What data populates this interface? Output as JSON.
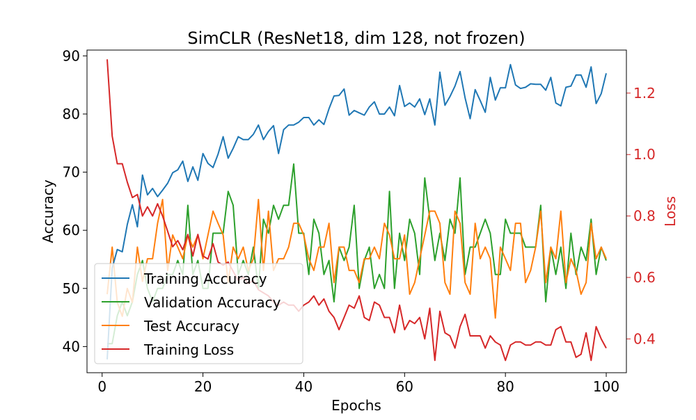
{
  "chart_data": {
    "type": "line",
    "title": "SimCLR (ResNet18, dim 128, not frozen)",
    "xlabel": "Epochs",
    "ylabel": "Accuracy",
    "ylabel_right": "Loss",
    "xlim": [
      -3,
      104
    ],
    "ylim": [
      35.5,
      91
    ],
    "ylim_right": [
      0.29,
      1.34
    ],
    "xticks": [
      0,
      20,
      40,
      60,
      80,
      100
    ],
    "yticks": [
      40,
      50,
      60,
      70,
      80,
      90
    ],
    "yticks_right": [
      0.4,
      0.6,
      0.8,
      1.0,
      1.2
    ],
    "grid": false,
    "legend_position": "lower-left",
    "x": [
      1,
      2,
      3,
      4,
      5,
      6,
      7,
      8,
      9,
      10,
      11,
      12,
      13,
      14,
      15,
      16,
      17,
      18,
      19,
      20,
      21,
      22,
      23,
      24,
      25,
      26,
      27,
      28,
      29,
      30,
      31,
      32,
      33,
      34,
      35,
      36,
      37,
      38,
      39,
      40,
      41,
      42,
      43,
      44,
      45,
      46,
      47,
      48,
      49,
      50,
      51,
      52,
      53,
      54,
      55,
      56,
      57,
      58,
      59,
      60,
      61,
      62,
      63,
      64,
      65,
      66,
      67,
      68,
      69,
      70,
      71,
      72,
      73,
      74,
      75,
      76,
      77,
      78,
      79,
      80,
      81,
      82,
      83,
      84,
      85,
      86,
      87,
      88,
      89,
      90,
      91,
      92,
      93,
      94,
      95,
      96,
      97,
      98,
      99,
      100
    ],
    "series": [
      {
        "name": "Training Accuracy",
        "axis": "left",
        "color": "#1f77b4",
        "values": [
          37.8,
          53.5,
          56.7,
          56.3,
          61.0,
          64.4,
          60.6,
          69.5,
          66.1,
          67.2,
          65.8,
          66.9,
          68.1,
          69.9,
          70.4,
          71.9,
          68.4,
          70.9,
          68.6,
          73.2,
          71.5,
          70.8,
          73.1,
          76.1,
          72.4,
          74.1,
          76.1,
          75.6,
          75.6,
          76.5,
          78.1,
          75.6,
          77.0,
          78.0,
          73.2,
          77.3,
          78.1,
          78.1,
          78.6,
          79.4,
          79.4,
          78.1,
          79.0,
          78.2,
          80.9,
          83.1,
          83.2,
          84.3,
          79.8,
          80.6,
          80.2,
          79.8,
          81.2,
          82.1,
          80.0,
          80.0,
          81.2,
          79.7,
          84.9,
          81.3,
          81.9,
          81.2,
          82.6,
          79.9,
          82.6,
          78.1,
          87.2,
          81.5,
          83.0,
          84.8,
          87.3,
          82.8,
          79.2,
          84.2,
          82.3,
          80.3,
          86.3,
          82.4,
          84.5,
          84.5,
          88.5,
          85.0,
          84.4,
          84.6,
          85.2,
          85.1,
          85.1,
          84.1,
          86.3,
          81.9,
          81.4,
          84.6,
          84.8,
          86.7,
          86.7,
          84.6,
          88.1,
          81.8,
          83.5,
          87.0
        ]
      },
      {
        "name": "Validation Accuracy",
        "axis": "left",
        "color": "#2ca02c",
        "values": [
          40.5,
          40.5,
          45.3,
          47.7,
          45.3,
          47.7,
          52.4,
          54.8,
          50.0,
          47.7,
          50.0,
          50.0,
          52.4,
          52.4,
          54.8,
          52.4,
          64.3,
          52.4,
          54.8,
          50.0,
          50.0,
          59.5,
          59.5,
          59.5,
          66.7,
          64.3,
          52.4,
          54.8,
          52.4,
          57.1,
          50.0,
          61.9,
          59.5,
          64.3,
          61.9,
          64.3,
          64.3,
          71.4,
          59.5,
          59.5,
          52.4,
          61.9,
          59.5,
          52.4,
          54.8,
          47.7,
          57.1,
          54.8,
          57.1,
          64.3,
          50.0,
          54.8,
          57.1,
          50.0,
          52.4,
          50.0,
          66.7,
          50.0,
          59.5,
          54.8,
          61.9,
          59.5,
          52.4,
          69.0,
          61.9,
          54.8,
          59.5,
          54.8,
          61.9,
          59.5,
          69.0,
          52.4,
          57.1,
          57.1,
          59.5,
          61.9,
          59.5,
          52.4,
          52.4,
          61.9,
          59.5,
          59.5,
          59.5,
          57.1,
          57.1,
          57.1,
          64.3,
          47.7,
          57.1,
          52.4,
          57.1,
          50.0,
          59.5,
          52.4,
          57.1,
          54.8,
          61.9,
          52.4,
          57.1,
          54.8
        ]
      },
      {
        "name": "Test Accuracy",
        "axis": "left",
        "color": "#ff7f0e",
        "values": [
          49.0,
          57.1,
          47.6,
          45.2,
          50.0,
          47.6,
          57.1,
          51.2,
          55.1,
          55.1,
          61.2,
          65.3,
          53.1,
          59.2,
          57.1,
          55.1,
          59.2,
          57.1,
          59.2,
          55.1,
          59.2,
          63.3,
          61.2,
          59.2,
          51.0,
          57.1,
          55.1,
          57.1,
          53.1,
          55.1,
          65.3,
          53.1,
          63.3,
          53.1,
          55.1,
          55.1,
          57.1,
          61.2,
          61.2,
          59.2,
          55.1,
          53.1,
          57.1,
          57.1,
          61.2,
          51.0,
          57.1,
          57.1,
          53.1,
          53.1,
          51.0,
          55.1,
          55.1,
          57.1,
          55.1,
          61.2,
          59.2,
          55.1,
          55.1,
          59.2,
          49.0,
          51.0,
          55.1,
          59.2,
          63.3,
          63.3,
          61.2,
          51.0,
          49.0,
          63.3,
          61.2,
          51.0,
          49.0,
          61.2,
          55.1,
          57.1,
          55.1,
          44.9,
          57.1,
          55.1,
          53.1,
          61.2,
          61.2,
          51.0,
          53.1,
          57.1,
          63.3,
          51.0,
          57.1,
          55.1,
          63.3,
          51.0,
          55.1,
          53.1,
          49.0,
          51.0,
          61.2,
          55.1,
          57.1,
          55.1
        ]
      },
      {
        "name": "Training Loss",
        "axis": "right",
        "color": "#d62728",
        "values": [
          1.31,
          1.06,
          0.97,
          0.97,
          0.91,
          0.86,
          0.87,
          0.8,
          0.83,
          0.8,
          0.84,
          0.8,
          0.75,
          0.7,
          0.72,
          0.69,
          0.74,
          0.67,
          0.74,
          0.67,
          0.66,
          0.71,
          0.65,
          0.64,
          0.65,
          0.62,
          0.59,
          0.6,
          0.58,
          0.59,
          0.56,
          0.55,
          0.54,
          0.52,
          0.51,
          0.52,
          0.51,
          0.51,
          0.49,
          0.51,
          0.52,
          0.54,
          0.51,
          0.53,
          0.49,
          0.47,
          0.43,
          0.47,
          0.51,
          0.5,
          0.54,
          0.47,
          0.46,
          0.52,
          0.51,
          0.47,
          0.47,
          0.42,
          0.51,
          0.43,
          0.46,
          0.45,
          0.47,
          0.4,
          0.5,
          0.33,
          0.49,
          0.42,
          0.41,
          0.37,
          0.44,
          0.48,
          0.41,
          0.41,
          0.41,
          0.37,
          0.41,
          0.39,
          0.38,
          0.33,
          0.38,
          0.39,
          0.39,
          0.38,
          0.38,
          0.39,
          0.39,
          0.38,
          0.38,
          0.43,
          0.44,
          0.39,
          0.39,
          0.34,
          0.35,
          0.42,
          0.33,
          0.44,
          0.4,
          0.37
        ]
      }
    ]
  }
}
